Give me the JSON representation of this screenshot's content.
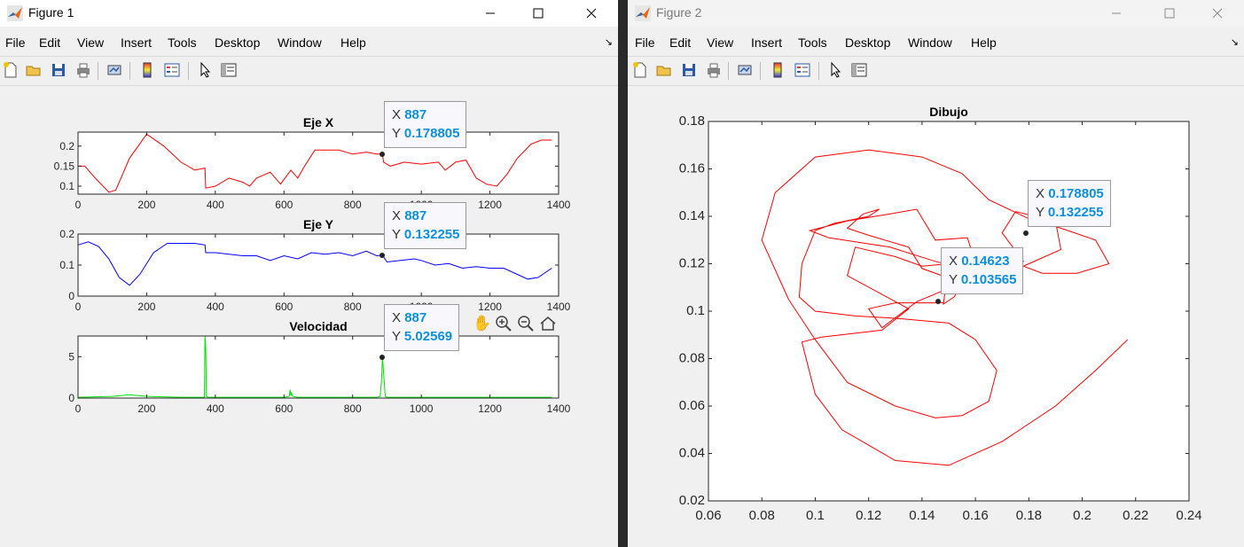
{
  "figure1": {
    "title": "Figure 1",
    "menu": [
      "File",
      "Edit",
      "View",
      "Insert",
      "Tools",
      "Desktop",
      "Window",
      "Help"
    ],
    "toolbar_icons": [
      "new-figure-icon",
      "open-file-icon",
      "save-icon",
      "print-icon",
      "link-plot-icon",
      "colorbar-icon",
      "legend-icon",
      "pointer-icon",
      "property-editor-icon"
    ],
    "axes_toolbar_icons": [
      "pan-hand-icon",
      "zoom-in-icon",
      "zoom-out-icon",
      "home-icon"
    ],
    "datatips": [
      {
        "x_label": "X",
        "x_value": "887",
        "y_label": "Y",
        "y_value": "0.178805"
      },
      {
        "x_label": "X",
        "x_value": "887",
        "y_label": "Y",
        "y_value": "0.132255"
      },
      {
        "x_label": "X",
        "x_value": "887",
        "y_label": "Y",
        "y_value": "5.02569"
      }
    ]
  },
  "figure2": {
    "title": "Figure 2",
    "menu": [
      "File",
      "Edit",
      "View",
      "Insert",
      "Tools",
      "Desktop",
      "Window",
      "Help"
    ],
    "datatips": [
      {
        "x_label": "X",
        "x_value": "0.178805",
        "y_label": "Y",
        "y_value": "0.132255"
      },
      {
        "x_label": "X",
        "x_value": "0.14623",
        "y_label": "Y",
        "y_value": "0.103565"
      }
    ]
  },
  "chart_data": [
    {
      "type": "line",
      "title": "Eje X",
      "xlim": [
        0,
        1400
      ],
      "ylim": [
        0.08,
        0.235
      ],
      "xticks": [
        "0",
        "200",
        "400",
        "600",
        "800",
        "1000",
        "1200",
        "1400"
      ],
      "yticks": [
        "0.1",
        "0.15",
        "0.2"
      ],
      "color": "#ff0000",
      "series": [
        {
          "x": [
            0,
            20,
            50,
            90,
            110,
            150,
            200,
            250,
            300,
            340,
            370,
            372,
            400,
            440,
            480,
            500,
            520,
            560,
            590,
            620,
            640,
            660,
            690,
            700,
            720,
            760,
            800,
            840,
            870,
            880,
            887,
            890,
            910,
            950,
            1000,
            1050,
            1070,
            1100,
            1130,
            1160,
            1190,
            1220,
            1250,
            1280,
            1320,
            1350,
            1380
          ],
          "y": [
            0.15,
            0.15,
            0.12,
            0.085,
            0.09,
            0.17,
            0.23,
            0.2,
            0.16,
            0.14,
            0.145,
            0.095,
            0.1,
            0.12,
            0.11,
            0.1,
            0.12,
            0.135,
            0.105,
            0.14,
            0.12,
            0.15,
            0.19,
            0.19,
            0.19,
            0.19,
            0.18,
            0.185,
            0.18,
            0.18,
            0.178805,
            0.16,
            0.15,
            0.16,
            0.155,
            0.16,
            0.14,
            0.16,
            0.165,
            0.12,
            0.105,
            0.1,
            0.13,
            0.17,
            0.205,
            0.215,
            0.215
          ]
        }
      ]
    },
    {
      "type": "line",
      "title": "Eje Y",
      "xlim": [
        0,
        1400
      ],
      "ylim": [
        0,
        0.2
      ],
      "xticks": [
        "0",
        "200",
        "400",
        "600",
        "800",
        "1000",
        "1200",
        "1400"
      ],
      "yticks": [
        "0",
        "0.1",
        "0.2"
      ],
      "color": "#0000ff",
      "series": [
        {
          "x": [
            0,
            30,
            60,
            90,
            120,
            150,
            180,
            220,
            260,
            300,
            340,
            370,
            372,
            400,
            440,
            480,
            520,
            560,
            600,
            640,
            680,
            720,
            760,
            800,
            840,
            870,
            887,
            900,
            940,
            980,
            1000,
            1040,
            1080,
            1120,
            1160,
            1200,
            1240,
            1280,
            1310,
            1340,
            1380
          ],
          "y": [
            0.165,
            0.175,
            0.16,
            0.12,
            0.06,
            0.035,
            0.07,
            0.14,
            0.17,
            0.17,
            0.17,
            0.165,
            0.14,
            0.14,
            0.135,
            0.13,
            0.13,
            0.115,
            0.13,
            0.12,
            0.14,
            0.135,
            0.14,
            0.13,
            0.145,
            0.13,
            0.132255,
            0.11,
            0.115,
            0.12,
            0.115,
            0.1,
            0.105,
            0.09,
            0.095,
            0.09,
            0.09,
            0.07,
            0.055,
            0.06,
            0.09
          ]
        }
      ]
    },
    {
      "type": "line",
      "title": "Velocidad",
      "xlim": [
        0,
        1400
      ],
      "ylim": [
        0,
        7.5
      ],
      "xticks": [
        "0",
        "200",
        "400",
        "600",
        "800",
        "1000",
        "1200",
        "1400"
      ],
      "yticks": [
        "0",
        "5"
      ],
      "color": "#00e000",
      "series": [
        {
          "x": [
            0,
            100,
            150,
            200,
            300,
            360,
            368,
            370,
            372,
            374,
            380,
            500,
            600,
            615,
            618,
            620,
            622,
            625,
            640,
            700,
            800,
            870,
            880,
            884,
            887,
            890,
            895,
            900,
            1000,
            1100,
            1200,
            1300,
            1380
          ],
          "y": [
            0.1,
            0.2,
            0.4,
            0.2,
            0.1,
            0.1,
            0.1,
            7.5,
            6.0,
            0.2,
            0.1,
            0.1,
            0.1,
            0.2,
            1.0,
            0.3,
            0.6,
            0.2,
            0.1,
            0.1,
            0.1,
            0.1,
            0.2,
            2.0,
            5.02569,
            3.0,
            0.2,
            0.1,
            0.1,
            0.1,
            0.1,
            0.1,
            0.1
          ]
        }
      ]
    },
    {
      "type": "line",
      "title": "Dibujo",
      "xlim": [
        0.06,
        0.24
      ],
      "ylim": [
        0.02,
        0.18
      ],
      "xticks": [
        "0.06",
        "0.08",
        "0.1",
        "0.12",
        "0.14",
        "0.16",
        "0.18",
        "0.2",
        "0.22",
        "0.24"
      ],
      "yticks": [
        "0.02",
        "0.04",
        "0.06",
        "0.08",
        "0.1",
        "0.12",
        "0.14",
        "0.16",
        "0.18"
      ],
      "color": "#ff0000",
      "series": [
        {
          "x": [
            0.217,
            0.205,
            0.19,
            0.17,
            0.15,
            0.13,
            0.11,
            0.1,
            0.095,
            0.102,
            0.125,
            0.135,
            0.112,
            0.115,
            0.13,
            0.14,
            0.15,
            0.148,
            0.152,
            0.16,
            0.157,
            0.145,
            0.138,
            0.128,
            0.112,
            0.098,
            0.105,
            0.128,
            0.145,
            0.162,
            0.178,
            0.17,
            0.175,
            0.19,
            0.192,
            0.18,
            0.178,
            0.185,
            0.198,
            0.21,
            0.205,
            0.192,
            0.18,
            0.165,
            0.155,
            0.14,
            0.12,
            0.1,
            0.085,
            0.08,
            0.09,
            0.1,
            0.112,
            0.13,
            0.145,
            0.155,
            0.165,
            0.168,
            0.16,
            0.15,
            0.13,
            0.115,
            0.1,
            0.094,
            0.095,
            0.1,
            0.107,
            0.12,
            0.124,
            0.118,
            0.112,
            0.12,
            0.135,
            0.14,
            0.155,
            0.138,
            0.125,
            0.12,
            0.13,
            0.14,
            0.145,
            0.148
          ],
          "y": [
            0.088,
            0.075,
            0.06,
            0.045,
            0.035,
            0.037,
            0.05,
            0.065,
            0.087,
            0.089,
            0.092,
            0.101,
            0.115,
            0.127,
            0.123,
            0.119,
            0.12,
            0.103,
            0.106,
            0.12,
            0.131,
            0.13,
            0.143,
            0.141,
            0.138,
            0.134,
            0.131,
            0.127,
            0.121,
            0.116,
            0.121,
            0.133,
            0.142,
            0.138,
            0.126,
            0.12,
            0.119,
            0.116,
            0.116,
            0.12,
            0.13,
            0.135,
            0.139,
            0.147,
            0.158,
            0.165,
            0.168,
            0.165,
            0.15,
            0.13,
            0.105,
            0.088,
            0.07,
            0.06,
            0.055,
            0.056,
            0.062,
            0.075,
            0.088,
            0.095,
            0.097,
            0.098,
            0.1,
            0.106,
            0.12,
            0.134,
            0.137,
            0.14,
            0.143,
            0.141,
            0.135,
            0.132,
            0.127,
            0.118,
            0.112,
            0.104,
            0.093,
            0.101,
            0.1035,
            0.1035,
            0.1035,
            0.1036
          ]
        }
      ]
    }
  ]
}
